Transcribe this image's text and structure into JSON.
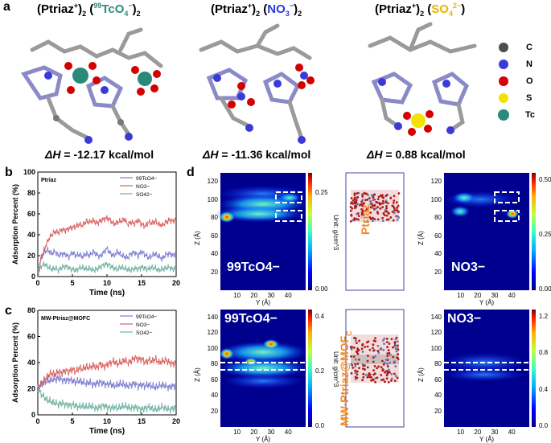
{
  "panels": {
    "a": "a",
    "b": "b",
    "c": "c",
    "d": "d"
  },
  "molecules": [
    {
      "title_pre": "(Ptriaz",
      "title_sup": "+",
      "title_mid": ")",
      "title_sub": "2",
      "title_anion": "(99TcO4−)2",
      "anion_main": "TcO",
      "anion_iso": "99",
      "anion_sub": "4",
      "anion_charge": "−",
      "anion_post": ")",
      "anion_post_sub": "2",
      "anion_color": "#2e8b7a",
      "dH_label": "ΔH",
      "dH_value": " = -12.17 kcal/mol"
    },
    {
      "title_pre": "(Ptriaz",
      "title_sup": "+",
      "title_mid": ")",
      "title_sub": "2",
      "anion_main": "NO",
      "anion_iso": "",
      "anion_sub": "3",
      "anion_charge": "−",
      "anion_post": ")",
      "anion_post_sub": "2",
      "anion_color": "#2b3ad6",
      "dH_label": "ΔH",
      "dH_value": " = -11.36 kcal/mol"
    },
    {
      "title_pre": "(Ptriaz",
      "title_sup": "+",
      "title_mid": ")",
      "title_sub": "2",
      "anion_main": "SO",
      "anion_iso": "",
      "anion_sub": "4",
      "anion_charge": "2−",
      "anion_post": ")",
      "anion_post_sub": "",
      "anion_color": "#e6b800",
      "dH_label": "ΔH",
      "dH_value": " = 0.88 kcal/mol"
    }
  ],
  "element_legend": [
    {
      "symbol": "C",
      "color": "#4d4d4d"
    },
    {
      "symbol": "N",
      "color": "#3a3ad8"
    },
    {
      "symbol": "O",
      "color": "#d40000"
    },
    {
      "symbol": "S",
      "color": "#f2e200"
    },
    {
      "symbol": "Tc",
      "color": "#2a8a7a"
    }
  ],
  "line_charts": [
    {
      "label": "Ptriaz",
      "xlabel": "Time (ns)",
      "ylabel": "Adsorption Percent (%)",
      "legend": [
        "99TcO4−",
        "NO3−",
        "SO42−"
      ]
    },
    {
      "label": "MW-Ptriaz@MOFC",
      "xlabel": "Time (ns)",
      "ylabel": "Adsorption Percent (%)",
      "legend": [
        "99TcO4−",
        "NO3−",
        "SO42−"
      ]
    }
  ],
  "chart_data": [
    {
      "type": "line",
      "title": "Ptriaz",
      "xlabel": "Time (ns)",
      "ylabel": "Adsorption Percent (%)",
      "xlim": [
        0,
        20
      ],
      "ylim": [
        0,
        100
      ],
      "xticks": [
        0,
        5,
        10,
        15,
        20
      ],
      "yticks": [
        0,
        20,
        40,
        60,
        80,
        100
      ],
      "legend_position": "top-right",
      "x": [
        0,
        0.5,
        1,
        1.5,
        2,
        2.5,
        3,
        3.5,
        4,
        4.5,
        5,
        5.5,
        6,
        6.5,
        7,
        7.5,
        8,
        8.5,
        9,
        9.5,
        10,
        10.5,
        11,
        11.5,
        12,
        12.5,
        13,
        13.5,
        14,
        14.5,
        15,
        15.5,
        16,
        16.5,
        17,
        17.5,
        18,
        18.5,
        19,
        19.5,
        20
      ],
      "series": [
        {
          "name": "99TcO4−",
          "color": "#7b7bd0",
          "values": [
            5,
            18,
            24,
            25,
            22,
            24,
            20,
            22,
            21,
            19,
            23,
            20,
            21,
            19,
            22,
            20,
            24,
            21,
            19,
            23,
            27,
            22,
            20,
            24,
            21,
            19,
            18,
            22,
            23,
            20,
            24,
            21,
            18,
            20,
            22,
            19,
            17,
            21,
            22,
            20,
            23
          ]
        },
        {
          "name": "NO3−",
          "color": "#d95f5f",
          "values": [
            2,
            18,
            27,
            35,
            40,
            43,
            42,
            45,
            44,
            46,
            47,
            48,
            50,
            49,
            53,
            52,
            54,
            51,
            53,
            55,
            56,
            54,
            50,
            52,
            53,
            55,
            50,
            52,
            51,
            54,
            50,
            48,
            52,
            51,
            53,
            50,
            49,
            52,
            54,
            53,
            55
          ]
        },
        {
          "name": "SO42−",
          "color": "#6fb3a3",
          "values": [
            2,
            10,
            12,
            9,
            7,
            8,
            6,
            9,
            10,
            8,
            7,
            6,
            8,
            9,
            7,
            8,
            6,
            7,
            9,
            11,
            12,
            10,
            8,
            7,
            9,
            8,
            7,
            6,
            8,
            7,
            9,
            8,
            7,
            9,
            8,
            6,
            7,
            8,
            9,
            7,
            8
          ]
        }
      ]
    },
    {
      "type": "line",
      "title": "MW-Ptriaz@MOFC",
      "xlabel": "Time (ns)",
      "ylabel": "Adsorption Percent (%)",
      "xlim": [
        0,
        20
      ],
      "ylim": [
        0,
        80
      ],
      "xticks": [
        0,
        5,
        10,
        15,
        20
      ],
      "yticks": [
        0,
        20,
        40,
        60,
        80
      ],
      "legend_position": "top-right",
      "x": [
        0,
        0.5,
        1,
        1.5,
        2,
        2.5,
        3,
        3.5,
        4,
        4.5,
        5,
        5.5,
        6,
        6.5,
        7,
        7.5,
        8,
        8.5,
        9,
        9.5,
        10,
        10.5,
        11,
        11.5,
        12,
        12.5,
        13,
        13.5,
        14,
        14.5,
        15,
        15.5,
        16,
        16.5,
        17,
        17.5,
        18,
        18.5,
        19,
        19.5,
        20
      ],
      "series": [
        {
          "name": "99TcO4−",
          "color": "#7b7bd0",
          "values": [
            21,
            23,
            25,
            26,
            27,
            27,
            28,
            27,
            26,
            27,
            26,
            25,
            26,
            25,
            24,
            25,
            23,
            24,
            25,
            24,
            23,
            24,
            22,
            23,
            24,
            23,
            22,
            23,
            24,
            22,
            23,
            22,
            23,
            22,
            21,
            22,
            23,
            22,
            21,
            22,
            23
          ]
        },
        {
          "name": "NO3−",
          "color": "#d95f5f",
          "values": [
            20,
            24,
            27,
            30,
            32,
            31,
            33,
            32,
            34,
            33,
            35,
            33,
            36,
            35,
            37,
            36,
            38,
            36,
            39,
            37,
            38,
            40,
            41,
            39,
            40,
            42,
            40,
            41,
            44,
            42,
            43,
            40,
            42,
            41,
            43,
            40,
            41,
            42,
            40,
            39,
            40
          ]
        },
        {
          "name": "SO42−",
          "color": "#6fb3a3",
          "values": [
            20,
            16,
            13,
            11,
            10,
            9,
            8,
            9,
            8,
            7,
            8,
            7,
            6,
            7,
            6,
            7,
            6,
            5,
            6,
            7,
            6,
            5,
            6,
            5,
            6,
            7,
            6,
            5,
            6,
            5,
            4,
            5,
            6,
            5,
            4,
            5,
            6,
            5,
            4,
            5,
            5
          ]
        }
      ]
    }
  ],
  "heatmaps": [
    {
      "ion": "99TcO4−",
      "ylabel": "Z (Å)",
      "xlabel": "Y (Å)",
      "yticks": [
        "120",
        "100",
        "80",
        "60",
        "40",
        "20"
      ],
      "xticks": [
        "10",
        "20",
        "30",
        "40"
      ],
      "cbar_ticks": [
        "0.25",
        "0.00"
      ],
      "cbar_label": "Unit: g/cm^3"
    },
    {
      "ion": "NO3−",
      "ylabel": "Z (Å)",
      "xlabel": "Y (Å)",
      "yticks": [
        "120",
        "100",
        "80",
        "60",
        "40",
        "20"
      ],
      "xticks": [
        "10",
        "20",
        "30",
        "40"
      ],
      "cbar_ticks": [
        "0.50",
        "0.25",
        "0.00"
      ],
      "cbar_label": "Unit: g/cm^3"
    },
    {
      "ion": "99TcO4−",
      "ylabel": "Z (Å)",
      "xlabel": "Y (Å)",
      "yticks": [
        "140",
        "120",
        "100",
        "80",
        "60",
        "40",
        "20"
      ],
      "xticks": [
        "10",
        "20",
        "30",
        "40"
      ],
      "cbar_ticks": [
        "0.4",
        "0.2",
        "0.0"
      ],
      "cbar_label": "Unit: g/cm^3"
    },
    {
      "ion": "NO3−",
      "ylabel": "Z (Å)",
      "xlabel": "Y (Å)",
      "yticks": [
        "140",
        "120",
        "100",
        "80",
        "60",
        "40",
        "20"
      ],
      "xticks": [
        "10",
        "20",
        "30",
        "40"
      ],
      "cbar_ticks": [
        "1.2",
        "0.8",
        "0.4",
        "0.0"
      ],
      "cbar_label": "Unit: g/cm^3"
    }
  ],
  "slab_labels": {
    "top": "Ptriaz",
    "bottom_main": "MW-Ptriaz@MOF",
    "bottom_sub": "C",
    "color": "#f08a24"
  }
}
